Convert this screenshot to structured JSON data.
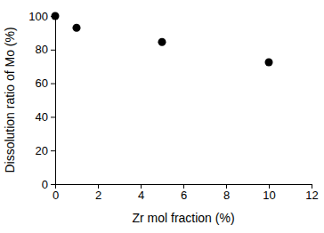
{
  "chart_data": {
    "type": "scatter",
    "x_label": "Zr mol fraction (%)",
    "y_label": "Dissolution ratio of Mo (%)",
    "x": [
      0,
      1,
      5,
      10
    ],
    "values": [
      100,
      93,
      84.5,
      72.5
    ],
    "color": "#000000",
    "marker": "circle",
    "xlim": [
      0,
      12
    ],
    "xticks": [
      0,
      2,
      4,
      6,
      8,
      10,
      12
    ],
    "ylim": [
      0,
      100
    ],
    "yticks": [
      0,
      20,
      40,
      60,
      80,
      100
    ],
    "grid": false
  }
}
